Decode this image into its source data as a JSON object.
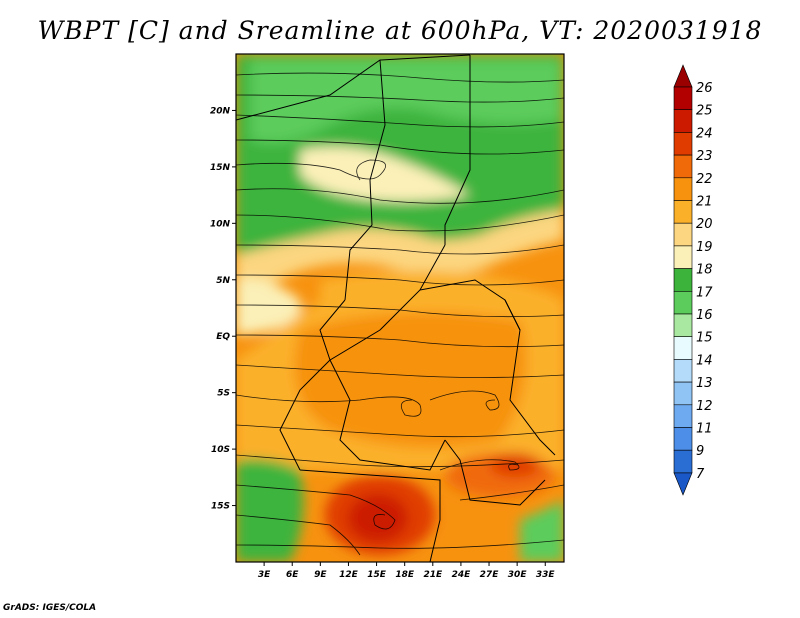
{
  "title": "WBPT [C] and Sreamline at 600hPa, VT: 2020031918",
  "credit": "GrADS: IGES/COLA",
  "chart_data": {
    "type": "heatmap",
    "title": "WBPT [C] and Sreamline at 600hPa, VT: 2020031918",
    "variable": "WBPT [C]",
    "overlay": "streamlines",
    "level": "600hPa",
    "valid_time": "2020031918",
    "x_ticks": [
      "3E",
      "6E",
      "9E",
      "12E",
      "15E",
      "18E",
      "21E",
      "24E",
      "27E",
      "30E",
      "33E"
    ],
    "x_tick_values": [
      3,
      6,
      9,
      12,
      15,
      18,
      21,
      24,
      27,
      30,
      33
    ],
    "y_ticks": [
      "20N",
      "15N",
      "10N",
      "5N",
      "EQ",
      "5S",
      "10S",
      "15S"
    ],
    "y_tick_values": [
      20,
      15,
      10,
      5,
      0,
      -5,
      -10,
      -15
    ],
    "xlim": [
      0,
      35
    ],
    "ylim": [
      -20,
      25
    ],
    "colorbar": {
      "levels": [
        "26",
        "25",
        "24",
        "23",
        "22",
        "21",
        "20",
        "19",
        "18",
        "17",
        "16",
        "15",
        "14",
        "13",
        "12",
        "11",
        "9",
        "7"
      ],
      "colors": [
        "#9a0000",
        "#b20000",
        "#cc1a00",
        "#e03c00",
        "#f06a0a",
        "#f7920f",
        "#fbb02a",
        "#fcd680",
        "#fbf0b8",
        "#3cb43c",
        "#5ccc5c",
        "#a8e8a0",
        "#e8fbff",
        "#b4dcfa",
        "#90c4f4",
        "#6eaaf0",
        "#4c8ee8",
        "#2a6ed4",
        "#1a58c8"
      ]
    },
    "regions": [
      {
        "name": "north-green",
        "approx_value": 17
      },
      {
        "name": "central-orange",
        "approx_value": 21
      },
      {
        "name": "southwest-hotspot",
        "approx_value": 23
      },
      {
        "name": "southeast-hotspot",
        "approx_value": 23
      }
    ]
  }
}
